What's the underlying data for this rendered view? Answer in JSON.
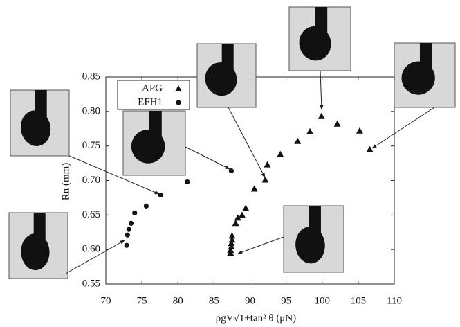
{
  "chart_data": {
    "type": "scatter",
    "x_label": "ρgV√1+tan² θ (μN)",
    "y_label": "Rn (mm)",
    "xlim": [
      70,
      110
    ],
    "xticks": [
      70,
      75,
      80,
      85,
      90,
      95,
      100,
      105,
      110
    ],
    "ylim": [
      0.55,
      0.85
    ],
    "yticks": [
      0.55,
      {
        "value": 0.6,
        "label": "0.60"
      },
      0.65,
      {
        "value": 0.7,
        "label": "0.70"
      },
      0.75,
      {
        "value": 0.8,
        "label": "0.80"
      },
      0.85
    ],
    "legend": "top-left",
    "series": [
      {
        "name": "APG",
        "marker": "triangle",
        "color": "#111111",
        "x": [
          87.3,
          87.3,
          87.4,
          87.4,
          87.5,
          87.5,
          88.0,
          88.3,
          88.9,
          89.4,
          90.6,
          92.1,
          92.4,
          94.2,
          96.6,
          98.3,
          99.9,
          102.1,
          105.2,
          106.6
        ],
        "values": [
          0.595,
          0.599,
          0.604,
          0.609,
          0.614,
          0.62,
          0.638,
          0.646,
          0.65,
          0.66,
          0.688,
          0.701,
          0.723,
          0.738,
          0.757,
          0.771,
          0.793,
          0.782,
          0.772,
          0.745
        ]
      },
      {
        "name": "EFH1",
        "marker": "circle",
        "color": "#111111",
        "x": [
          72.9,
          73.0,
          73.2,
          73.5,
          74.0,
          75.6,
          77.6,
          81.3,
          87.4
        ],
        "values": [
          0.606,
          0.621,
          0.629,
          0.638,
          0.653,
          0.663,
          0.679,
          0.698,
          0.714
        ]
      }
    ]
  }
}
